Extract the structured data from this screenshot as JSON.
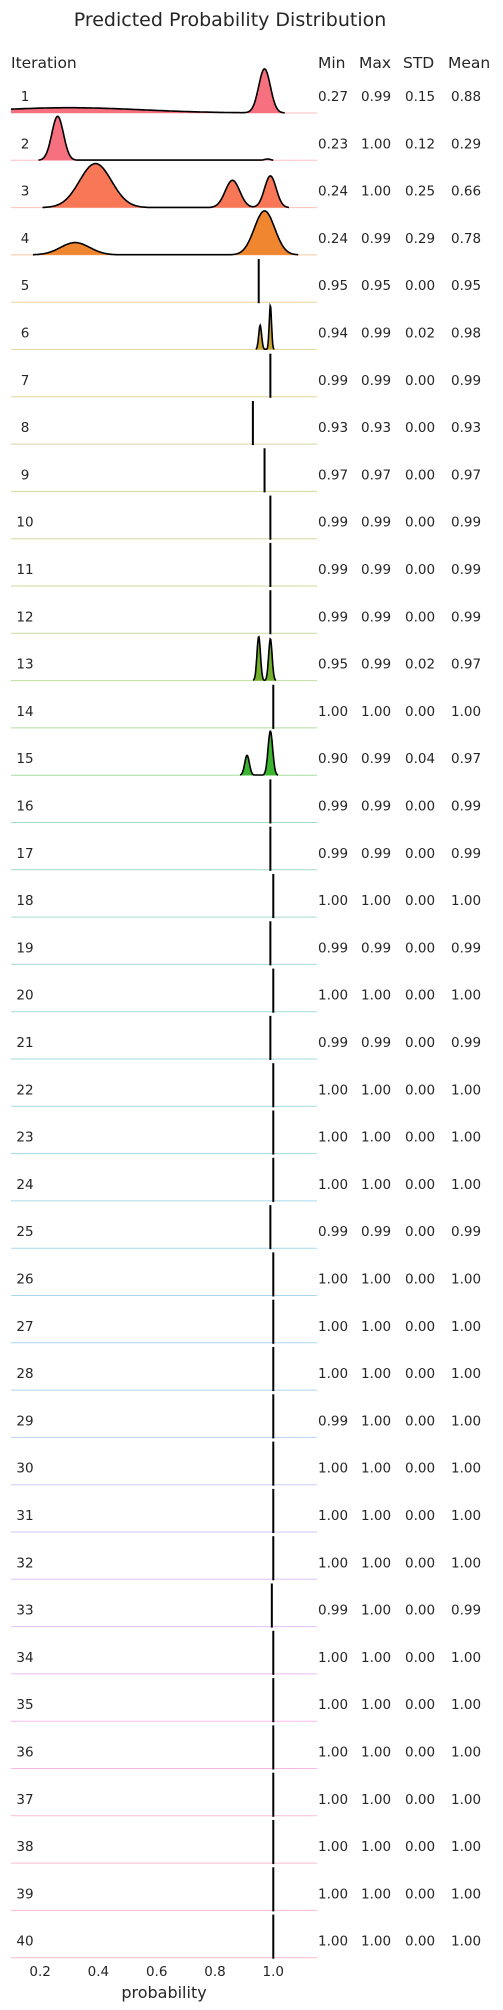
{
  "chart_data": {
    "type": "ridgeline",
    "title": "Predicted Probability Distribution",
    "xlabel": "probability",
    "xlim": [
      0.1,
      1.15
    ],
    "xticks": [
      "0.2",
      "0.4",
      "0.6",
      "0.8",
      "1.0"
    ],
    "headers": {
      "label": "Iteration",
      "min": "Min",
      "max": "Max",
      "std": "STD",
      "mean": "Mean"
    },
    "rows": [
      {
        "label": "1",
        "min": "0.27",
        "max": "0.99",
        "std": "0.15",
        "mean": "0.88",
        "color": "#f7707f",
        "peaks": [
          [
            0.97,
            0.02,
            1.0
          ],
          [
            0.3,
            0.25,
            0.12
          ]
        ]
      },
      {
        "label": "2",
        "min": "0.23",
        "max": "1.00",
        "std": "0.12",
        "mean": "0.29",
        "color": "#f7707f",
        "peaks": [
          [
            0.26,
            0.02,
            1.0
          ],
          [
            0.98,
            0.01,
            0.03
          ]
        ]
      },
      {
        "label": "3",
        "min": "0.24",
        "max": "1.00",
        "std": "0.25",
        "mean": "0.66",
        "color": "#f87756",
        "peaks": [
          [
            0.39,
            0.055,
            1.0
          ],
          [
            0.86,
            0.025,
            0.62
          ],
          [
            0.99,
            0.02,
            0.72
          ]
        ]
      },
      {
        "label": "4",
        "min": "0.24",
        "max": "0.99",
        "std": "0.29",
        "mean": "0.78",
        "color": "#f0862f",
        "peaks": [
          [
            0.32,
            0.05,
            0.28
          ],
          [
            0.97,
            0.035,
            1.0
          ]
        ]
      },
      {
        "label": "5",
        "min": "0.95",
        "max": "0.95",
        "std": "0.00",
        "mean": "0.95",
        "color": "#d9a232",
        "peaks": [
          [
            0.95,
            0.002,
            1.0
          ]
        ]
      },
      {
        "label": "6",
        "min": "0.94",
        "max": "0.99",
        "std": "0.02",
        "mean": "0.98",
        "color": "#c9a430",
        "peaks": [
          [
            0.955,
            0.005,
            0.55
          ],
          [
            0.99,
            0.004,
            1.0
          ]
        ]
      },
      {
        "label": "7",
        "min": "0.99",
        "max": "0.99",
        "std": "0.00",
        "mean": "0.99",
        "color": "#c0a32e",
        "peaks": [
          [
            0.99,
            0.002,
            1.0
          ]
        ]
      },
      {
        "label": "8",
        "min": "0.93",
        "max": "0.93",
        "std": "0.00",
        "mean": "0.93",
        "color": "#b6a42e",
        "peaks": [
          [
            0.93,
            0.002,
            1.0
          ]
        ]
      },
      {
        "label": "9",
        "min": "0.97",
        "max": "0.97",
        "std": "0.00",
        "mean": "0.97",
        "color": "#aea72e",
        "peaks": [
          [
            0.97,
            0.002,
            1.0
          ]
        ]
      },
      {
        "label": "10",
        "min": "0.99",
        "max": "0.99",
        "std": "0.00",
        "mean": "0.99",
        "color": "#a4a82d",
        "peaks": [
          [
            0.99,
            0.002,
            1.0
          ]
        ]
      },
      {
        "label": "11",
        "min": "0.99",
        "max": "0.99",
        "std": "0.00",
        "mean": "0.99",
        "color": "#9aaa2d",
        "peaks": [
          [
            0.99,
            0.002,
            1.0
          ]
        ]
      },
      {
        "label": "12",
        "min": "0.99",
        "max": "0.99",
        "std": "0.00",
        "mean": "0.99",
        "color": "#8ead2d",
        "peaks": [
          [
            0.99,
            0.002,
            1.0
          ]
        ]
      },
      {
        "label": "13",
        "min": "0.95",
        "max": "0.99",
        "std": "0.02",
        "mean": "0.97",
        "color": "#72b02e",
        "peaks": [
          [
            0.95,
            0.006,
            1.0
          ],
          [
            0.99,
            0.006,
            0.95
          ]
        ]
      },
      {
        "label": "14",
        "min": "1.00",
        "max": "1.00",
        "std": "0.00",
        "mean": "1.00",
        "color": "#5db22e",
        "peaks": [
          [
            1.0,
            0.002,
            1.0
          ]
        ]
      },
      {
        "label": "15",
        "min": "0.90",
        "max": "0.99",
        "std": "0.04",
        "mean": "0.97",
        "color": "#3bb52f",
        "peaks": [
          [
            0.91,
            0.008,
            0.45
          ],
          [
            0.99,
            0.008,
            1.0
          ]
        ]
      },
      {
        "label": "16",
        "min": "0.99",
        "max": "0.99",
        "std": "0.00",
        "mean": "0.99",
        "color": "#34b46a",
        "peaks": [
          [
            0.99,
            0.002,
            1.0
          ]
        ]
      },
      {
        "label": "17",
        "min": "0.99",
        "max": "0.99",
        "std": "0.00",
        "mean": "0.99",
        "color": "#34b38a",
        "peaks": [
          [
            0.99,
            0.002,
            1.0
          ]
        ]
      },
      {
        "label": "18",
        "min": "1.00",
        "max": "1.00",
        "std": "0.00",
        "mean": "1.00",
        "color": "#35b29b",
        "peaks": [
          [
            1.0,
            0.002,
            1.0
          ]
        ]
      },
      {
        "label": "19",
        "min": "0.99",
        "max": "0.99",
        "std": "0.00",
        "mean": "0.99",
        "color": "#36b1a6",
        "peaks": [
          [
            0.99,
            0.002,
            1.0
          ]
        ]
      },
      {
        "label": "20",
        "min": "1.00",
        "max": "1.00",
        "std": "0.00",
        "mean": "1.00",
        "color": "#37b0ae",
        "peaks": [
          [
            1.0,
            0.002,
            1.0
          ]
        ]
      },
      {
        "label": "21",
        "min": "0.99",
        "max": "0.99",
        "std": "0.00",
        "mean": "0.99",
        "color": "#38b0b5",
        "peaks": [
          [
            0.99,
            0.002,
            1.0
          ]
        ]
      },
      {
        "label": "22",
        "min": "1.00",
        "max": "1.00",
        "std": "0.00",
        "mean": "1.00",
        "color": "#39afbb",
        "peaks": [
          [
            1.0,
            0.002,
            1.0
          ]
        ]
      },
      {
        "label": "23",
        "min": "1.00",
        "max": "1.00",
        "std": "0.00",
        "mean": "1.00",
        "color": "#3aaec2",
        "peaks": [
          [
            1.0,
            0.002,
            1.0
          ]
        ]
      },
      {
        "label": "24",
        "min": "1.00",
        "max": "1.00",
        "std": "0.00",
        "mean": "1.00",
        "color": "#3badc9",
        "peaks": [
          [
            1.0,
            0.002,
            1.0
          ]
        ]
      },
      {
        "label": "25",
        "min": "0.99",
        "max": "0.99",
        "std": "0.00",
        "mean": "0.99",
        "color": "#3dacd1",
        "peaks": [
          [
            0.99,
            0.002,
            1.0
          ]
        ]
      },
      {
        "label": "26",
        "min": "1.00",
        "max": "1.00",
        "std": "0.00",
        "mean": "1.00",
        "color": "#41aada",
        "peaks": [
          [
            1.0,
            0.002,
            1.0
          ]
        ]
      },
      {
        "label": "27",
        "min": "1.00",
        "max": "1.00",
        "std": "0.00",
        "mean": "1.00",
        "color": "#48a7e3",
        "peaks": [
          [
            1.0,
            0.002,
            1.0
          ]
        ]
      },
      {
        "label": "28",
        "min": "1.00",
        "max": "1.00",
        "std": "0.00",
        "mean": "1.00",
        "color": "#53a3ea",
        "peaks": [
          [
            1.0,
            0.002,
            1.0
          ]
        ]
      },
      {
        "label": "29",
        "min": "0.99",
        "max": "1.00",
        "std": "0.00",
        "mean": "1.00",
        "color": "#6b9cf0",
        "peaks": [
          [
            1.0,
            0.002,
            1.0
          ]
        ]
      },
      {
        "label": "30",
        "min": "1.00",
        "max": "1.00",
        "std": "0.00",
        "mean": "1.00",
        "color": "#8694f4",
        "peaks": [
          [
            1.0,
            0.002,
            1.0
          ]
        ]
      },
      {
        "label": "31",
        "min": "1.00",
        "max": "1.00",
        "std": "0.00",
        "mean": "1.00",
        "color": "#a08af4",
        "peaks": [
          [
            1.0,
            0.002,
            1.0
          ]
        ]
      },
      {
        "label": "32",
        "min": "1.00",
        "max": "1.00",
        "std": "0.00",
        "mean": "1.00",
        "color": "#b47ff4",
        "peaks": [
          [
            1.0,
            0.002,
            1.0
          ]
        ]
      },
      {
        "label": "33",
        "min": "0.99",
        "max": "1.00",
        "std": "0.00",
        "mean": "0.99",
        "color": "#c576f1",
        "peaks": [
          [
            0.995,
            0.002,
            1.0
          ]
        ]
      },
      {
        "label": "34",
        "min": "1.00",
        "max": "1.00",
        "std": "0.00",
        "mean": "1.00",
        "color": "#d86eec",
        "peaks": [
          [
            1.0,
            0.002,
            1.0
          ]
        ]
      },
      {
        "label": "35",
        "min": "1.00",
        "max": "1.00",
        "std": "0.00",
        "mean": "1.00",
        "color": "#eb66dd",
        "peaks": [
          [
            1.0,
            0.002,
            1.0
          ]
        ]
      },
      {
        "label": "36",
        "min": "1.00",
        "max": "1.00",
        "std": "0.00",
        "mean": "1.00",
        "color": "#f264c8",
        "peaks": [
          [
            1.0,
            0.002,
            1.0
          ]
        ]
      },
      {
        "label": "37",
        "min": "1.00",
        "max": "1.00",
        "std": "0.00",
        "mean": "1.00",
        "color": "#f466b4",
        "peaks": [
          [
            1.0,
            0.002,
            1.0
          ]
        ]
      },
      {
        "label": "38",
        "min": "1.00",
        "max": "1.00",
        "std": "0.00",
        "mean": "1.00",
        "color": "#f569a3",
        "peaks": [
          [
            1.0,
            0.002,
            1.0
          ]
        ]
      },
      {
        "label": "39",
        "min": "1.00",
        "max": "1.00",
        "std": "0.00",
        "mean": "1.00",
        "color": "#f66c92",
        "peaks": [
          [
            1.0,
            0.002,
            1.0
          ]
        ]
      },
      {
        "label": "40",
        "min": "1.00",
        "max": "1.00",
        "std": "0.00",
        "mean": "1.00",
        "color": "#f76f82",
        "peaks": [
          [
            1.0,
            0.002,
            1.0
          ]
        ]
      }
    ]
  }
}
